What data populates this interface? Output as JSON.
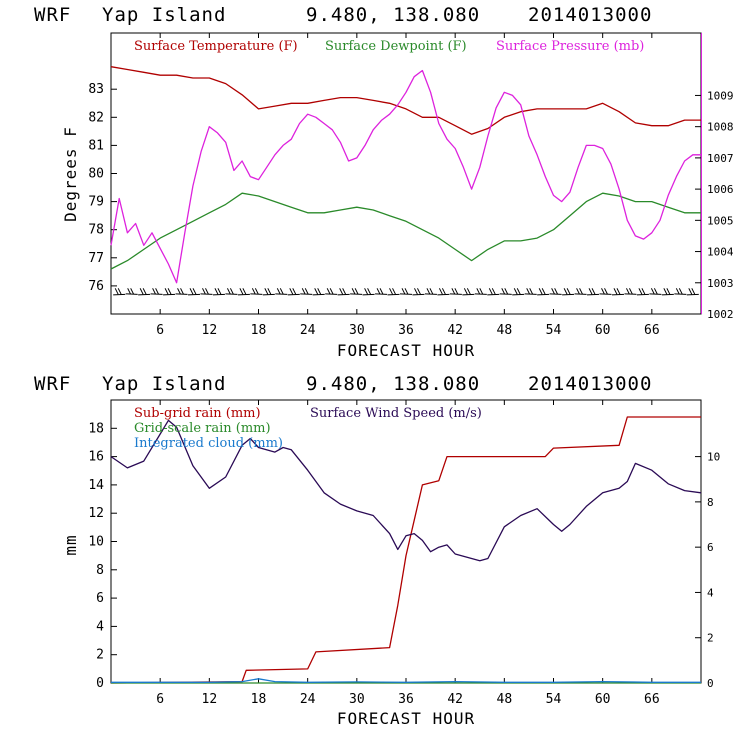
{
  "chart_data": [
    {
      "type": "line",
      "header": {
        "model": "WRF",
        "station": "Yap Island",
        "coords": "9.480, 138.080",
        "date": "2014013000"
      },
      "xlabel": "FORECAST HOUR",
      "ylabel": "Degrees F",
      "xlim": [
        0,
        72
      ],
      "xticks": [
        6,
        12,
        18,
        24,
        30,
        36,
        42,
        48,
        54,
        60,
        66
      ],
      "ylim": [
        75,
        85
      ],
      "yticks": [
        76,
        77,
        78,
        79,
        80,
        81,
        82,
        83
      ],
      "y2lim": [
        1002,
        1011
      ],
      "y2ticks": [
        1002,
        1003,
        1004,
        1005,
        1006,
        1007,
        1008,
        1009
      ],
      "series": [
        {
          "name": "Surface Temperature (F)",
          "color": "#b00000",
          "axis": "left",
          "x": [
            0,
            2,
            4,
            6,
            8,
            10,
            12,
            14,
            16,
            18,
            20,
            22,
            24,
            26,
            28,
            30,
            32,
            34,
            36,
            38,
            40,
            42,
            44,
            46,
            48,
            50,
            52,
            54,
            56,
            58,
            60,
            62,
            64,
            66,
            68,
            70,
            72
          ],
          "values": [
            83.8,
            83.7,
            83.6,
            83.5,
            83.5,
            83.4,
            83.4,
            83.2,
            82.8,
            82.3,
            82.4,
            82.5,
            82.5,
            82.6,
            82.7,
            82.7,
            82.6,
            82.5,
            82.3,
            82.0,
            82.0,
            81.7,
            81.4,
            81.6,
            82.0,
            82.2,
            82.3,
            82.3,
            82.3,
            82.3,
            82.5,
            82.2,
            81.8,
            81.7,
            81.7,
            81.9,
            81.9
          ]
        },
        {
          "name": "Surface Dewpoint (F)",
          "color": "#2a8a2a",
          "axis": "left",
          "x": [
            0,
            2,
            4,
            6,
            8,
            10,
            12,
            14,
            16,
            18,
            20,
            22,
            24,
            26,
            28,
            30,
            32,
            34,
            36,
            38,
            40,
            42,
            44,
            46,
            48,
            50,
            52,
            54,
            56,
            58,
            60,
            62,
            64,
            66,
            68,
            70,
            72
          ],
          "values": [
            76.6,
            76.9,
            77.3,
            77.7,
            78.0,
            78.3,
            78.6,
            78.9,
            79.3,
            79.2,
            79.0,
            78.8,
            78.6,
            78.6,
            78.7,
            78.8,
            78.7,
            78.5,
            78.3,
            78.0,
            77.7,
            77.3,
            76.9,
            77.3,
            77.6,
            77.6,
            77.7,
            78.0,
            78.5,
            79.0,
            79.3,
            79.2,
            79.0,
            79.0,
            78.8,
            78.6,
            78.6
          ]
        },
        {
          "name": "Surface Pressure (mb)",
          "color": "#dd22dd",
          "axis": "right",
          "x": [
            0,
            1,
            2,
            3,
            4,
            5,
            6,
            7,
            8,
            9,
            10,
            11,
            12,
            13,
            14,
            15,
            16,
            17,
            18,
            19,
            20,
            21,
            22,
            23,
            24,
            25,
            26,
            27,
            28,
            29,
            30,
            31,
            32,
            33,
            34,
            35,
            36,
            37,
            38,
            39,
            40,
            41,
            42,
            43,
            44,
            45,
            46,
            47,
            48,
            49,
            50,
            51,
            52,
            53,
            54,
            55,
            56,
            57,
            58,
            59,
            60,
            61,
            62,
            63,
            64,
            65,
            66,
            67,
            68,
            69,
            70,
            71,
            72
          ],
          "values": [
            1004.2,
            1005.7,
            1004.6,
            1004.9,
            1004.2,
            1004.6,
            1004.1,
            1003.6,
            1003.0,
            1004.6,
            1006.1,
            1007.2,
            1008.0,
            1007.8,
            1007.5,
            1006.6,
            1006.9,
            1006.4,
            1006.3,
            1006.7,
            1007.1,
            1007.4,
            1007.6,
            1008.1,
            1008.4,
            1008.3,
            1008.1,
            1007.9,
            1007.5,
            1006.9,
            1007.0,
            1007.4,
            1007.9,
            1008.2,
            1008.4,
            1008.7,
            1009.1,
            1009.6,
            1009.8,
            1009.1,
            1008.1,
            1007.6,
            1007.3,
            1006.7,
            1006.0,
            1006.7,
            1007.7,
            1008.6,
            1009.1,
            1009.0,
            1008.7,
            1007.7,
            1007.1,
            1006.4,
            1005.8,
            1005.6,
            1005.9,
            1006.7,
            1007.4,
            1007.4,
            1007.3,
            1006.8,
            1006.0,
            1005.0,
            1004.5,
            1004.4,
            1004.6,
            1005.0,
            1005.8,
            1006.4,
            1006.9,
            1007.1,
            1007.1
          ]
        }
      ],
      "wind_barbs": {
        "hour_start": 1,
        "hour_end": 71,
        "count": 47,
        "base_value": 75.7,
        "color": "#000000"
      },
      "legend": [
        "Surface Temperature (F)",
        "Surface Dewpoint (F)",
        "Surface Pressure (mb)"
      ]
    },
    {
      "type": "line",
      "header": {
        "model": "WRF",
        "station": "Yap Island",
        "coords": "9.480, 138.080",
        "date": "2014013000"
      },
      "xlabel": "FORECAST HOUR",
      "ylabel": "mm",
      "xlim": [
        0,
        72
      ],
      "xticks": [
        6,
        12,
        18,
        24,
        30,
        36,
        42,
        48,
        54,
        60,
        66
      ],
      "ylim": [
        0,
        20
      ],
      "yticks": [
        0,
        2,
        4,
        6,
        8,
        10,
        12,
        14,
        16,
        18
      ],
      "y2lim": [
        0,
        12.5
      ],
      "y2ticks": [
        0,
        2,
        4,
        6,
        8,
        10
      ],
      "series": [
        {
          "name": "Sub-grid rain (mm)",
          "color": "#b00000",
          "axis": "left",
          "x": [
            0,
            16,
            16.5,
            24,
            25,
            34,
            35,
            36,
            37,
            38,
            40,
            41,
            53,
            54,
            62,
            63,
            72
          ],
          "values": [
            0,
            0.1,
            0.9,
            1.0,
            2.2,
            2.5,
            5.5,
            9.0,
            11.5,
            14.0,
            14.3,
            16.0,
            16.0,
            16.6,
            16.8,
            18.8,
            18.8
          ]
        },
        {
          "name": "Grid-scale rain (mm)",
          "color": "#2a8a2a",
          "axis": "left",
          "x": [
            0,
            72
          ],
          "values": [
            0,
            0
          ]
        },
        {
          "name": "Integrated cloud (mm)",
          "color": "#1a7acd",
          "axis": "left",
          "x": [
            0,
            8,
            12,
            16,
            18,
            20,
            24,
            30,
            36,
            42,
            48,
            54,
            60,
            66,
            72
          ],
          "values": [
            0.05,
            0.05,
            0.05,
            0.1,
            0.3,
            0.1,
            0.05,
            0.08,
            0.05,
            0.1,
            0.05,
            0.05,
            0.1,
            0.05,
            0.05
          ]
        },
        {
          "name": "Surface Wind Speed (m/s)",
          "color": "#2a0a55",
          "axis": "right",
          "x": [
            0,
            2,
            4,
            6,
            7,
            8,
            10,
            12,
            14,
            16,
            17,
            18,
            20,
            21,
            22,
            24,
            26,
            28,
            30,
            32,
            34,
            35,
            36,
            37,
            38,
            39,
            40,
            41,
            42,
            43,
            44,
            45,
            46,
            48,
            50,
            52,
            54,
            55,
            56,
            58,
            60,
            62,
            63,
            64,
            66,
            68,
            70,
            72
          ],
          "values": [
            10.0,
            9.5,
            9.8,
            11.0,
            11.6,
            11.3,
            9.6,
            8.6,
            9.1,
            10.5,
            10.8,
            10.4,
            10.2,
            10.4,
            10.3,
            9.4,
            8.4,
            7.9,
            7.6,
            7.4,
            6.6,
            5.9,
            6.5,
            6.6,
            6.3,
            5.8,
            6.0,
            6.1,
            5.7,
            5.6,
            5.5,
            5.4,
            5.5,
            6.9,
            7.4,
            7.7,
            7.0,
            6.7,
            7.0,
            7.8,
            8.4,
            8.6,
            8.9,
            9.7,
            9.4,
            8.8,
            8.5,
            8.4
          ]
        }
      ],
      "legend": [
        "Sub-grid rain (mm)",
        "Grid-scale rain (mm)",
        "Integrated cloud (mm)",
        "Surface Wind Speed (m/s)"
      ]
    }
  ]
}
